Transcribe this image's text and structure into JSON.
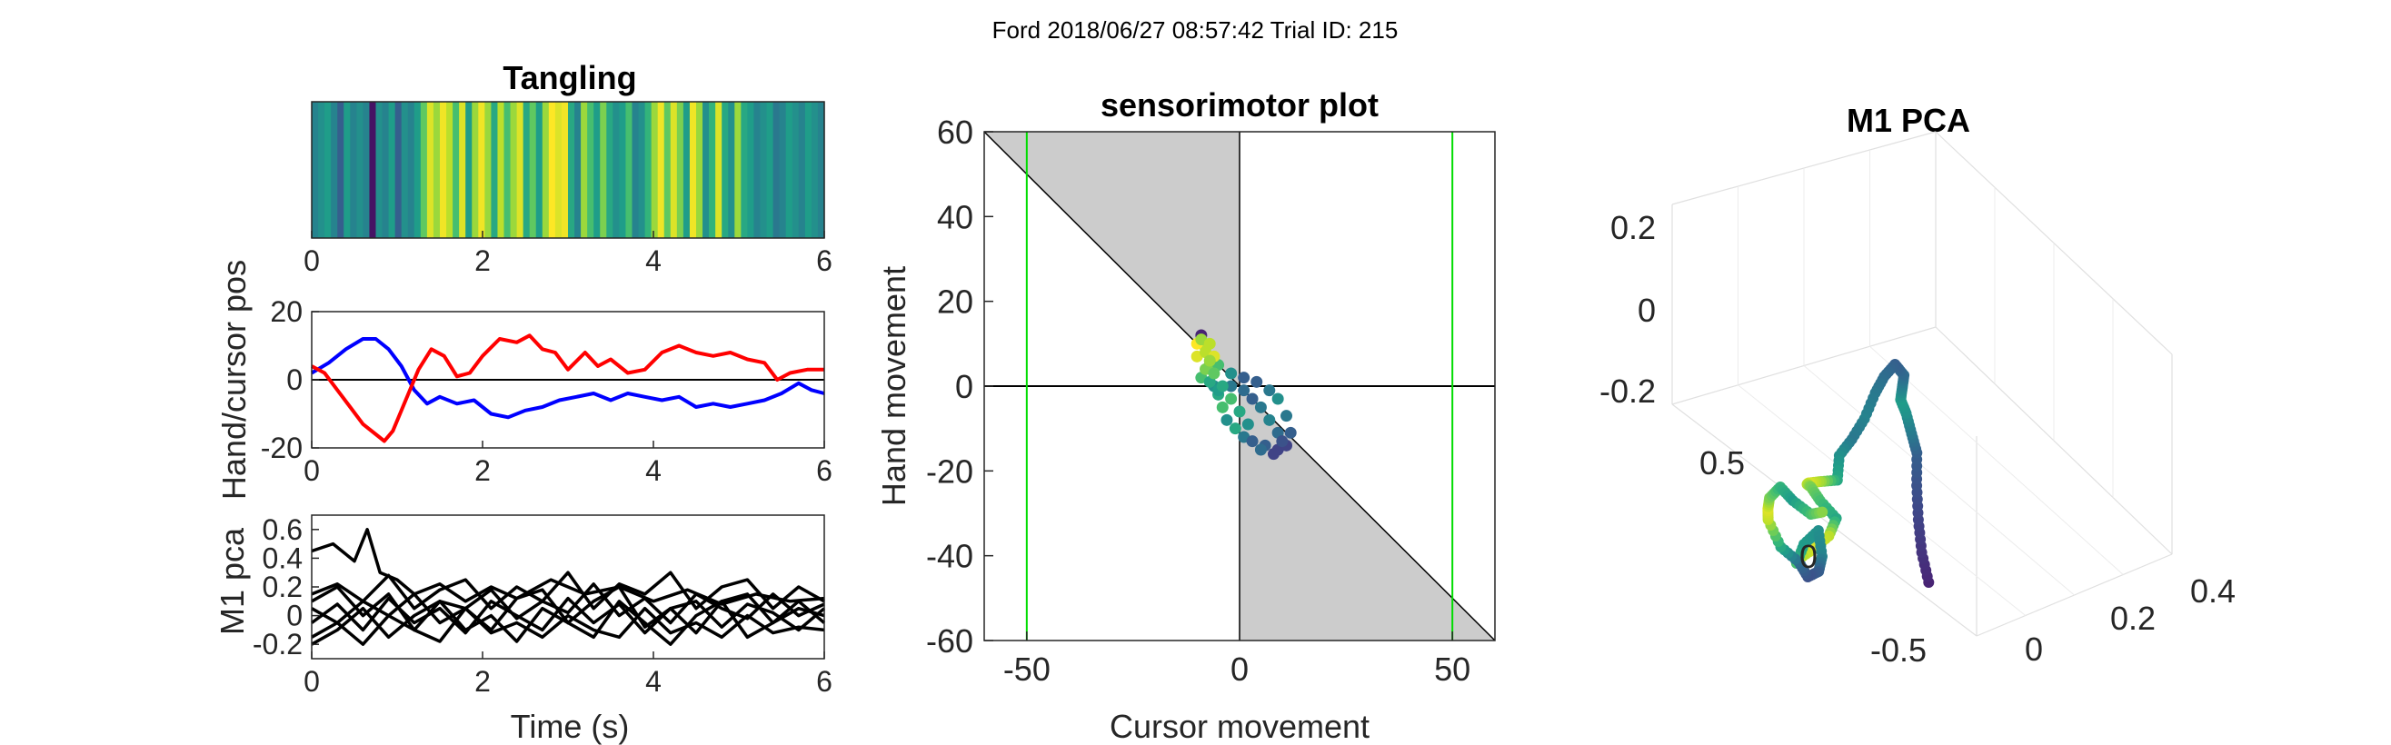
{
  "figure_title": "Ford 2018/06/27 08:57:42 Trial ID: 215",
  "chart_data": [
    {
      "id": "tangling",
      "type": "heatmap",
      "title": "Tangling",
      "xlim": [
        0,
        6
      ],
      "xticks": [
        0,
        2,
        4,
        6
      ],
      "colormap": "viridis",
      "color_values": [
        0.45,
        0.5,
        0.55,
        0.45,
        0.3,
        0.55,
        0.45,
        0.5,
        0.45,
        0.05,
        0.5,
        0.45,
        0.55,
        0.3,
        0.5,
        0.45,
        0.55,
        0.75,
        0.95,
        0.85,
        0.98,
        0.9,
        0.7,
        0.95,
        0.55,
        0.85,
        0.98,
        0.85,
        0.6,
        0.9,
        0.7,
        0.85,
        0.95,
        0.6,
        0.75,
        0.55,
        0.85,
        1.0,
        0.95,
        0.98,
        0.6,
        0.45,
        0.85,
        0.7,
        0.55,
        0.8,
        0.6,
        0.5,
        0.55,
        0.7,
        0.45,
        0.5,
        0.65,
        0.85,
        0.98,
        0.75,
        0.95,
        0.8,
        0.55,
        0.98,
        0.85,
        0.5,
        0.65,
        0.95,
        0.6,
        0.5,
        0.85,
        0.6,
        0.55,
        0.45,
        0.5,
        0.55,
        0.4,
        0.45,
        0.55,
        0.5,
        0.45,
        0.55,
        0.5,
        0.45
      ]
    },
    {
      "id": "hand-cursor",
      "type": "line",
      "ylabel": "Hand/cursor pos",
      "xlim": [
        0,
        6
      ],
      "ylim": [
        -20,
        20
      ],
      "xticks": [
        0,
        2,
        4,
        6
      ],
      "yticks": [
        -20,
        0,
        20
      ],
      "hline": 0,
      "series": [
        {
          "color": "#0000ff",
          "x": [
            0,
            0.2,
            0.4,
            0.6,
            0.75,
            0.9,
            1.05,
            1.2,
            1.35,
            1.5,
            1.7,
            1.9,
            2.1,
            2.3,
            2.5,
            2.7,
            2.9,
            3.1,
            3.3,
            3.5,
            3.7,
            3.9,
            4.1,
            4.3,
            4.5,
            4.7,
            4.9,
            5.1,
            5.3,
            5.5,
            5.7,
            5.85,
            6.0
          ],
          "y": [
            2,
            5,
            9,
            12,
            12,
            9,
            4,
            -3,
            -7,
            -5,
            -7,
            -6,
            -10,
            -11,
            -9,
            -8,
            -6,
            -5,
            -4,
            -6,
            -4,
            -5,
            -6,
            -5,
            -8,
            -7,
            -8,
            -7,
            -6,
            -4,
            -1,
            -3,
            -4
          ]
        },
        {
          "color": "#ff0000",
          "x": [
            0,
            0.15,
            0.3,
            0.45,
            0.6,
            0.75,
            0.85,
            0.95,
            1.1,
            1.25,
            1.4,
            1.55,
            1.7,
            1.85,
            2.0,
            2.2,
            2.4,
            2.55,
            2.7,
            2.85,
            3.0,
            3.2,
            3.35,
            3.5,
            3.7,
            3.9,
            4.1,
            4.3,
            4.5,
            4.7,
            4.9,
            5.1,
            5.3,
            5.45,
            5.6,
            5.8,
            6.0
          ],
          "y": [
            4,
            2,
            -3,
            -8,
            -13,
            -16,
            -18,
            -15,
            -6,
            3,
            9,
            7,
            1,
            2,
            7,
            12,
            11,
            13,
            9,
            8,
            3,
            8,
            4,
            6,
            2,
            3,
            8,
            10,
            8,
            7,
            8,
            6,
            5,
            0,
            2,
            3,
            3
          ]
        }
      ]
    },
    {
      "id": "m1-pca-traces",
      "type": "line",
      "xlabel": "Time (s)",
      "ylabel": "M1 pca",
      "xlim": [
        0,
        6
      ],
      "ylim": [
        -0.3,
        0.7
      ],
      "xticks": [
        0,
        2,
        4,
        6
      ],
      "yticks": [
        -0.2,
        0,
        0.2,
        0.4,
        0.6
      ],
      "series": [
        {
          "color": "#000000",
          "x": [
            0,
            0.25,
            0.5,
            0.65,
            0.8,
            1.0,
            1.2,
            1.5,
            1.8,
            2.1,
            2.4,
            2.8,
            3.2,
            3.6,
            4.0,
            4.4,
            4.8,
            5.2,
            5.6,
            6.0
          ],
          "y": [
            0.45,
            0.5,
            0.38,
            0.6,
            0.3,
            0.25,
            0.15,
            0.22,
            0.1,
            0.2,
            0.12,
            0.25,
            0.15,
            0.2,
            0.1,
            0.18,
            0.08,
            0.15,
            0.1,
            0.12
          ]
        },
        {
          "color": "#000000",
          "x": [
            0,
            0.3,
            0.6,
            0.9,
            1.2,
            1.5,
            1.8,
            2.1,
            2.4,
            2.7,
            3.0,
            3.3,
            3.6,
            3.9,
            4.2,
            4.5,
            4.8,
            5.1,
            5.4,
            5.7,
            6.0
          ],
          "y": [
            0.15,
            0.22,
            0.1,
            0.28,
            0.05,
            0.18,
            0.25,
            0.05,
            0.2,
            0.1,
            0.3,
            0.05,
            0.22,
            0.15,
            0.3,
            0.05,
            0.2,
            0.25,
            0.05,
            0.2,
            0.1
          ]
        },
        {
          "color": "#000000",
          "x": [
            0,
            0.3,
            0.6,
            0.9,
            1.2,
            1.5,
            1.8,
            2.1,
            2.4,
            2.7,
            3.0,
            3.3,
            3.6,
            3.9,
            4.2,
            4.5,
            4.8,
            5.1,
            5.4,
            5.7,
            6.0
          ],
          "y": [
            0.05,
            -0.05,
            0.1,
            0.0,
            0.15,
            -0.05,
            0.05,
            0.18,
            -0.02,
            0.1,
            0.02,
            0.22,
            0.0,
            0.12,
            -0.05,
            0.15,
            0.05,
            -0.02,
            0.15,
            0.0,
            0.08
          ]
        },
        {
          "color": "#000000",
          "x": [
            0,
            0.3,
            0.6,
            0.9,
            1.2,
            1.5,
            1.8,
            2.1,
            2.4,
            2.7,
            3.0,
            3.3,
            3.6,
            3.9,
            4.2,
            4.5,
            4.8,
            5.1,
            5.4,
            5.7,
            6.0
          ],
          "y": [
            -0.05,
            0.08,
            -0.1,
            0.12,
            -0.05,
            0.05,
            -0.12,
            0.1,
            0.0,
            -0.1,
            0.12,
            -0.05,
            0.08,
            -0.12,
            0.05,
            0.1,
            -0.08,
            0.08,
            0.02,
            -0.1,
            0.05
          ]
        },
        {
          "color": "#000000",
          "x": [
            0,
            0.3,
            0.6,
            0.9,
            1.2,
            1.5,
            1.8,
            2.1,
            2.4,
            2.7,
            3.0,
            3.3,
            3.6,
            3.9,
            4.2,
            4.5,
            4.8,
            5.1,
            5.4,
            5.7,
            6.0
          ],
          "y": [
            -0.15,
            -0.05,
            -0.2,
            0.0,
            -0.1,
            -0.18,
            0.05,
            -0.12,
            -0.05,
            -0.15,
            0.0,
            -0.1,
            -0.15,
            0.05,
            -0.12,
            -0.05,
            -0.15,
            0.0,
            -0.12,
            -0.08,
            -0.1
          ]
        },
        {
          "color": "#000000",
          "x": [
            0,
            0.3,
            0.6,
            0.9,
            1.2,
            1.5,
            1.8,
            2.1,
            2.4,
            2.7,
            3.0,
            3.3,
            3.6,
            3.9,
            4.2,
            4.5,
            4.8,
            5.1,
            5.4,
            5.7,
            6.0
          ],
          "y": [
            0.1,
            0.2,
            0.0,
            0.15,
            -0.1,
            0.1,
            0.05,
            -0.1,
            0.12,
            0.18,
            -0.05,
            0.1,
            0.2,
            -0.08,
            0.05,
            -0.12,
            0.1,
            0.15,
            -0.05,
            0.05,
            0.0
          ]
        },
        {
          "color": "#000000",
          "x": [
            0,
            0.3,
            0.6,
            0.9,
            1.2,
            1.5,
            1.8,
            2.1,
            2.4,
            2.7,
            3.0,
            3.3,
            3.6,
            3.9,
            4.2,
            4.5,
            4.8,
            5.1,
            5.4,
            5.7,
            6.0
          ],
          "y": [
            -0.2,
            -0.1,
            0.05,
            -0.15,
            0.0,
            0.1,
            -0.1,
            0.0,
            -0.18,
            0.05,
            -0.05,
            -0.15,
            0.1,
            -0.05,
            -0.2,
            0.0,
            0.1,
            -0.15,
            -0.05,
            0.1,
            -0.05
          ]
        }
      ]
    },
    {
      "id": "sensorimotor",
      "type": "scatter",
      "title": "sensorimotor plot",
      "xlabel": "Cursor movement",
      "ylabel": "Hand movement",
      "xlim": [
        -60,
        60
      ],
      "ylim": [
        -60,
        60
      ],
      "xticks": [
        -50,
        0,
        50
      ],
      "yticks": [
        -60,
        -40,
        -20,
        0,
        20,
        40,
        60
      ],
      "shaded_regions": [
        [
          [
            -60,
            60
          ],
          [
            0,
            60
          ],
          [
            0,
            0
          ]
        ],
        [
          [
            0,
            0
          ],
          [
            60,
            -60
          ],
          [
            0,
            -60
          ]
        ]
      ],
      "vlines": [
        -50,
        50
      ],
      "vline_color": "#00dd00",
      "colormap": "viridis",
      "points": [
        [
          -9,
          12,
          0.1
        ],
        [
          -8,
          9,
          0.9
        ],
        [
          -10,
          7,
          0.95
        ],
        [
          -7,
          5,
          0.8
        ],
        [
          -9,
          2,
          0.7
        ],
        [
          -6,
          0,
          0.5
        ],
        [
          -5,
          -2,
          0.6
        ],
        [
          -4,
          -5,
          0.7
        ],
        [
          -3,
          -8,
          0.5
        ],
        [
          -1,
          -10,
          0.6
        ],
        [
          1,
          -12,
          0.4
        ],
        [
          3,
          -13,
          0.3
        ],
        [
          6,
          -14,
          0.3
        ],
        [
          9,
          -15,
          0.2
        ],
        [
          11,
          -14,
          0.2
        ],
        [
          12,
          -11,
          0.3
        ],
        [
          11,
          -7,
          0.4
        ],
        [
          9,
          -3,
          0.5
        ],
        [
          7,
          -1,
          0.4
        ],
        [
          4,
          1,
          0.3
        ],
        [
          1,
          2,
          0.3
        ],
        [
          -2,
          3,
          0.5
        ],
        [
          -5,
          5,
          0.7
        ],
        [
          -8,
          8,
          0.9
        ],
        [
          -10,
          10,
          1.0
        ],
        [
          -9,
          11,
          0.85
        ],
        [
          -7,
          10,
          0.9
        ],
        [
          -6,
          7,
          0.95
        ],
        [
          -8,
          4,
          0.8
        ],
        [
          -7,
          1,
          0.6
        ],
        [
          -5,
          -1,
          0.55
        ],
        [
          -2,
          0,
          0.4
        ],
        [
          1,
          -1,
          0.35
        ],
        [
          3,
          -3,
          0.3
        ],
        [
          5,
          -5,
          0.4
        ],
        [
          7,
          -8,
          0.45
        ],
        [
          9,
          -11,
          0.35
        ],
        [
          10,
          -13,
          0.25
        ],
        [
          8,
          -16,
          0.2
        ],
        [
          5,
          -15,
          0.35
        ],
        [
          2,
          -9,
          0.5
        ],
        [
          0,
          -6,
          0.6
        ],
        [
          -2,
          -3,
          0.7
        ],
        [
          -4,
          0,
          0.6
        ],
        [
          -6,
          3,
          0.75
        ],
        [
          -7,
          6,
          0.85
        ]
      ]
    },
    {
      "id": "m1-pca-3d",
      "type": "scatter",
      "title": "M1 PCA",
      "colormap": "viridis",
      "axis_ticks": {
        "z": [
          0.2,
          0,
          -0.2
        ],
        "a": [
          0.5,
          0,
          -0.5
        ],
        "b": [
          0,
          0.2,
          0.4
        ]
      },
      "points": [
        [
          0.15,
          0.55,
          -0.23,
          0.1
        ],
        [
          0.12,
          0.48,
          -0.18,
          0.15
        ],
        [
          0.08,
          0.42,
          -0.12,
          0.2
        ],
        [
          0.05,
          0.38,
          -0.05,
          0.25
        ],
        [
          0.02,
          0.35,
          0.02,
          0.3
        ],
        [
          0.0,
          0.3,
          0.05,
          0.4
        ],
        [
          0.03,
          0.3,
          0.1,
          0.5
        ],
        [
          0.08,
          0.32,
          0.14,
          0.55
        ],
        [
          0.1,
          0.35,
          0.18,
          0.45
        ],
        [
          0.12,
          0.38,
          0.22,
          0.35
        ],
        [
          0.15,
          0.36,
          0.24,
          0.3
        ],
        [
          0.18,
          0.33,
          0.2,
          0.35
        ],
        [
          0.2,
          0.3,
          0.15,
          0.4
        ],
        [
          0.24,
          0.28,
          0.08,
          0.45
        ],
        [
          0.28,
          0.25,
          0.02,
          0.4
        ],
        [
          0.32,
          0.22,
          -0.03,
          0.5
        ],
        [
          0.36,
          0.25,
          -0.08,
          0.6
        ],
        [
          0.4,
          0.2,
          -0.1,
          0.85
        ],
        [
          0.42,
          0.15,
          -0.12,
          0.95
        ],
        [
          0.38,
          0.1,
          -0.14,
          0.9
        ],
        [
          0.32,
          0.06,
          -0.16,
          0.8
        ],
        [
          0.25,
          0.04,
          -0.2,
          0.7
        ],
        [
          0.2,
          0.08,
          -0.23,
          0.6
        ],
        [
          0.28,
          0.12,
          -0.26,
          0.9
        ],
        [
          0.35,
          0.1,
          -0.3,
          0.95
        ],
        [
          0.4,
          0.06,
          -0.34,
          0.85
        ],
        [
          0.36,
          0.02,
          -0.36,
          0.7
        ],
        [
          0.3,
          0.0,
          -0.32,
          0.55
        ],
        [
          0.24,
          0.02,
          -0.28,
          0.5
        ],
        [
          0.2,
          0.0,
          -0.35,
          0.45
        ],
        [
          0.18,
          -0.04,
          -0.4,
          0.3
        ],
        [
          0.22,
          -0.06,
          -0.42,
          0.25
        ],
        [
          0.28,
          -0.05,
          -0.38,
          0.35
        ],
        [
          0.33,
          -0.1,
          -0.36,
          0.6
        ],
        [
          0.38,
          -0.12,
          -0.3,
          0.9
        ],
        [
          0.42,
          -0.08,
          -0.26,
          0.95
        ],
        [
          0.45,
          -0.04,
          -0.22,
          0.8
        ],
        [
          0.43,
          0.0,
          -0.18,
          0.65
        ],
        [
          0.4,
          0.04,
          -0.2,
          0.55
        ],
        [
          0.34,
          0.08,
          -0.22,
          0.7
        ],
        [
          0.3,
          0.12,
          -0.2,
          0.85
        ]
      ]
    }
  ]
}
